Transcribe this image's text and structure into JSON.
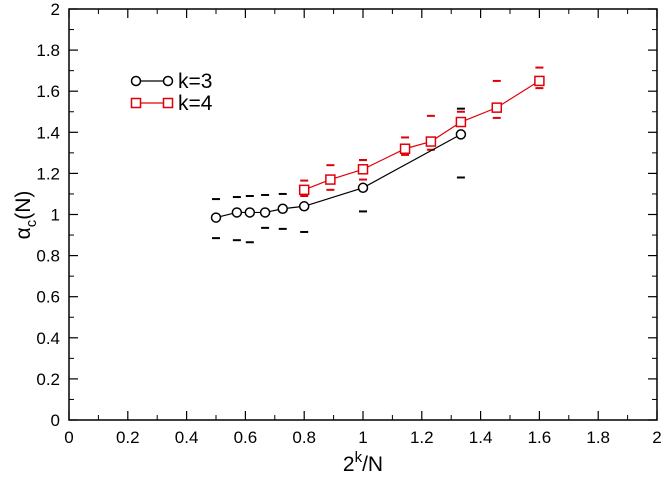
{
  "chart_data": {
    "type": "scatter",
    "xlabel": {
      "base": "2",
      "sup": "k",
      "rest": "/N"
    },
    "ylabel": {
      "greek": "α",
      "sub": "c",
      "rest": "(N)"
    },
    "xlim": [
      0,
      2
    ],
    "ylim": [
      0,
      2
    ],
    "xticks": [
      "0",
      "0.2",
      "0.4",
      "0.6",
      "0.8",
      "1",
      "1.2",
      "1.4",
      "1.6",
      "1.8",
      "2"
    ],
    "yticks": [
      "0",
      "0.2",
      "0.4",
      "0.6",
      "0.8",
      "1",
      "1.2",
      "1.4",
      "1.6",
      "1.8",
      "2"
    ],
    "grid": false,
    "legend_position": "top-left",
    "series": [
      {
        "name": "k=3",
        "color": "#000000",
        "marker": "circle",
        "x": [
          0.5,
          0.571,
          0.615,
          0.667,
          0.727,
          0.8,
          1.0,
          1.333
        ],
        "y": [
          0.985,
          1.01,
          1.01,
          1.01,
          1.028,
          1.04,
          1.13,
          1.39
        ],
        "error_low": [
          0.885,
          0.875,
          0.865,
          0.935,
          0.93,
          0.915,
          1.015,
          1.18
        ],
        "error_high": [
          1.075,
          1.085,
          1.09,
          1.095,
          1.1,
          1.1,
          1.265,
          1.515
        ]
      },
      {
        "name": "k=4",
        "color": "#e0000a",
        "marker": "square",
        "x": [
          0.8,
          0.889,
          1.0,
          1.143,
          1.231,
          1.333,
          1.455,
          1.6
        ],
        "y": [
          1.12,
          1.17,
          1.22,
          1.32,
          1.355,
          1.45,
          1.52,
          1.65
        ],
        "error_low": [
          1.09,
          1.12,
          1.17,
          1.29,
          1.315,
          1.38,
          1.47,
          1.615
        ],
        "error_high": [
          1.165,
          1.24,
          1.265,
          1.375,
          1.48,
          1.5,
          1.65,
          1.715
        ]
      }
    ]
  }
}
